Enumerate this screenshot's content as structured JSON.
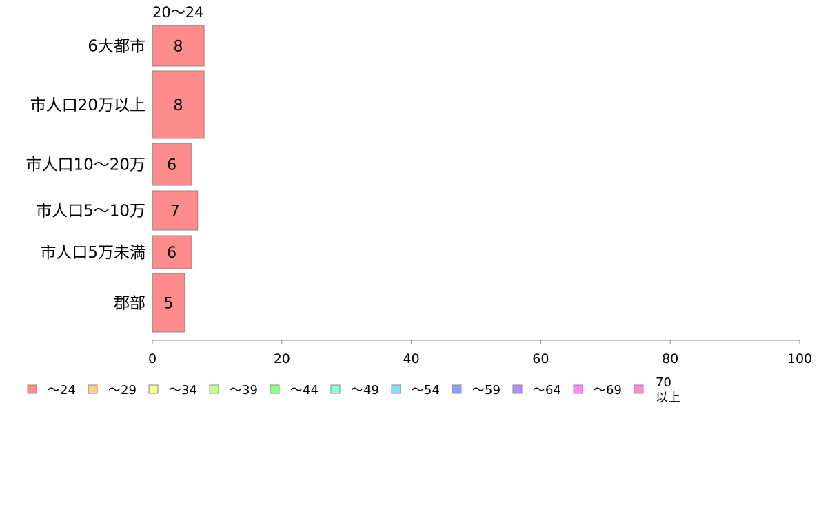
{
  "chart_data": {
    "type": "bar",
    "orientation": "horizontal",
    "series_header": "20〜24",
    "categories": [
      "6大都市",
      "市人口20万以上",
      "市人口10〜20万",
      "市人口5〜10万",
      "市人口5万未満",
      "郡部"
    ],
    "values": [
      8,
      8,
      6,
      7,
      6,
      5
    ],
    "bar_color": "#ff8c8c",
    "bar_stroke": "#8a8a8a",
    "xlim": [
      0,
      100
    ],
    "xticks": [
      "0",
      "20",
      "40",
      "60",
      "80",
      "100"
    ],
    "xtick_values": [
      0,
      20,
      40,
      60,
      80,
      100
    ],
    "axis_color": "#888888",
    "grid": false,
    "legend_position": "bottom-left",
    "legend": [
      {
        "label": "〜24",
        "color": "#ff8c8c"
      },
      {
        "label": "〜29",
        "color": "#ffcc8c"
      },
      {
        "label": "〜34",
        "color": "#ffff8c"
      },
      {
        "label": "〜39",
        "color": "#c6ff8c"
      },
      {
        "label": "〜44",
        "color": "#8cff8c"
      },
      {
        "label": "〜49",
        "color": "#8cffd9"
      },
      {
        "label": "〜54",
        "color": "#8cd9ff"
      },
      {
        "label": "〜59",
        "color": "#8c9fff"
      },
      {
        "label": "〜64",
        "color": "#b48cff"
      },
      {
        "label": "〜69",
        "color": "#ff8cff"
      },
      {
        "label": "70\n以上",
        "color": "#ff8cd0"
      }
    ]
  }
}
